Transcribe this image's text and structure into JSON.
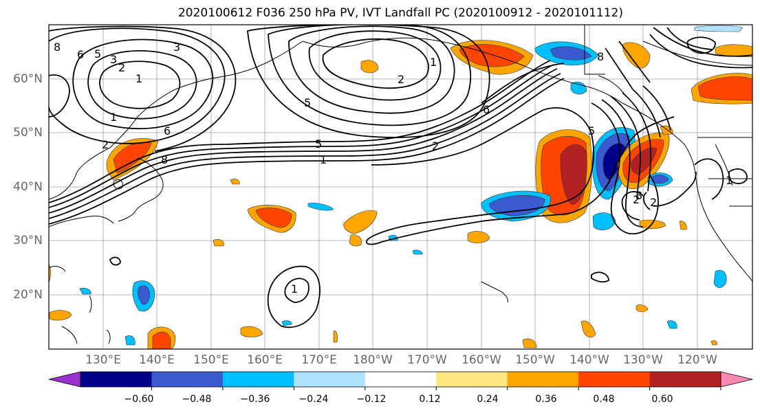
{
  "title": "2020100612 F036 250 hPa PV, IVT Landfall PC (2020100912 - 2020101112)",
  "lat_labels": [
    "60°N",
    "50°N",
    "40°N",
    "30°N",
    "20°N"
  ],
  "lon_labels": [
    "130°E",
    "140°E",
    "150°E",
    "160°E",
    "170°E",
    "180°W",
    "170°W",
    "160°W",
    "150°W",
    "140°W",
    "130°W",
    "120°W"
  ],
  "colorbar": {
    "ticks": [
      "−0.60",
      "−0.48",
      "−0.36",
      "−0.24",
      "−0.12",
      "0.12",
      "0.24",
      "0.36",
      "0.48",
      "0.60"
    ],
    "colors": [
      "#9932CC",
      "#00008B",
      "#3A5BD0",
      "#00BFFF",
      "#B0E2FF",
      "#FFFFFF",
      "#FFE680",
      "#FFA500",
      "#FF4500",
      "#B22222",
      "#FF87B0"
    ]
  },
  "contour_labels": [
    "1",
    "2",
    "3",
    "5",
    "6",
    "8",
    "1",
    "2",
    "6",
    "8",
    "5",
    "1",
    "2",
    "1",
    "2",
    "3",
    "5",
    "6",
    "8",
    "1",
    "2",
    "3",
    "1",
    "2",
    "5"
  ]
}
